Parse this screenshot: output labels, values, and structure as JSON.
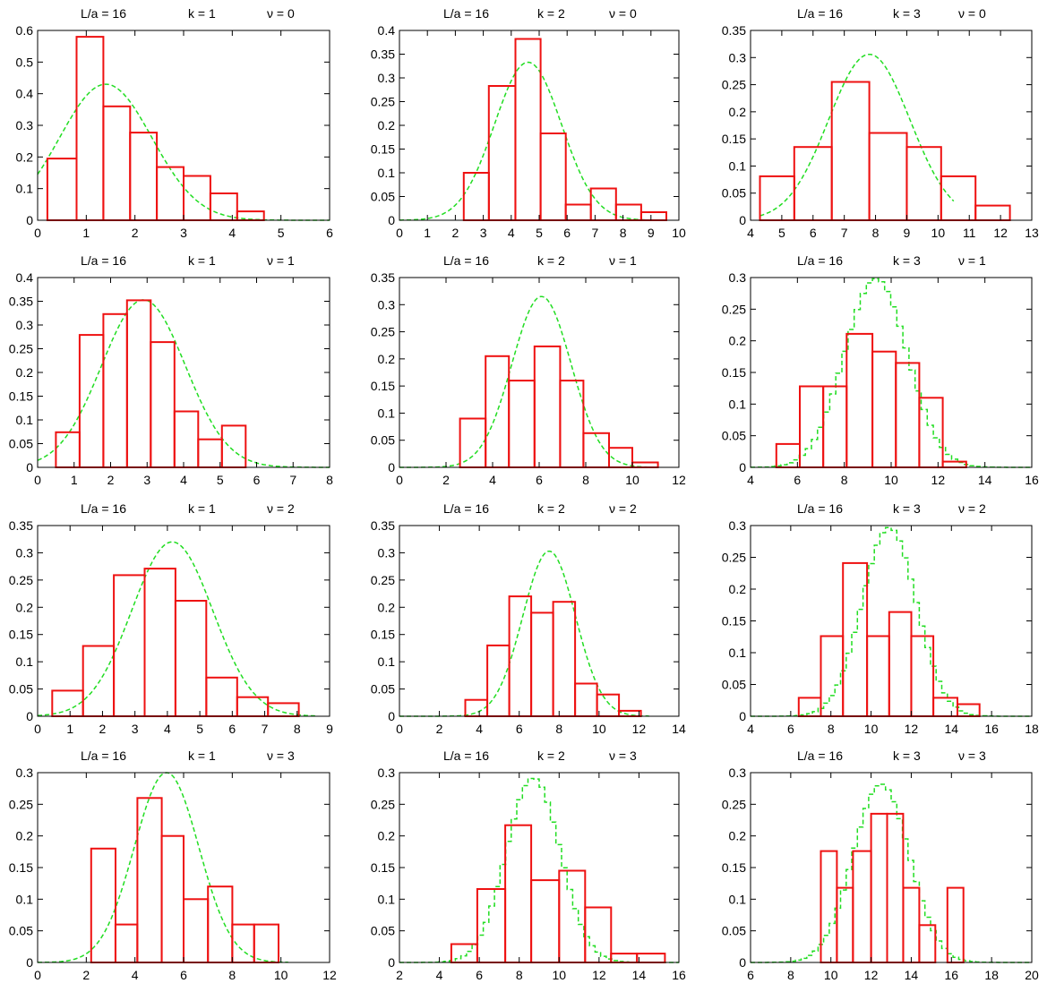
{
  "chart_data": [
    {
      "type": "bar",
      "title": {
        "L": "L/a = 16",
        "k": "k = 1",
        "nu": "ν = 0"
      },
      "xlim": [
        0,
        6
      ],
      "ylim": [
        0,
        0.6
      ],
      "xticks": [
        "0",
        "1",
        "2",
        "3",
        "4",
        "5",
        "6"
      ],
      "yticks": [
        "0",
        "0.1",
        "0.2",
        "0.3",
        "0.4",
        "0.5",
        "0.6"
      ],
      "bins": [
        [
          0.2,
          0.8,
          0.195
        ],
        [
          0.8,
          1.35,
          0.58
        ],
        [
          1.35,
          1.9,
          0.36
        ],
        [
          1.9,
          2.45,
          0.277
        ],
        [
          2.45,
          3.0,
          0.168
        ],
        [
          3.0,
          3.55,
          0.14
        ],
        [
          3.55,
          4.1,
          0.085
        ],
        [
          4.1,
          4.65,
          0.028
        ]
      ],
      "fit": {
        "kind": "smooth",
        "mu": 1.4,
        "sigma": 0.95,
        "peak": 0.43,
        "x": [
          0,
          6
        ]
      }
    },
    {
      "type": "bar",
      "title": {
        "L": "L/a = 16",
        "k": "k = 2",
        "nu": "ν = 0"
      },
      "xlim": [
        0,
        10
      ],
      "ylim": [
        0,
        0.4
      ],
      "xticks": [
        "0",
        "1",
        "2",
        "3",
        "4",
        "5",
        "6",
        "7",
        "8",
        "9",
        "10"
      ],
      "yticks": [
        "0",
        "0.05",
        "0.1",
        "0.15",
        "0.2",
        "0.25",
        "0.3",
        "0.35",
        "0.4"
      ],
      "bins": [
        [
          2.3,
          3.2,
          0.1
        ],
        [
          3.2,
          4.15,
          0.283
        ],
        [
          4.15,
          5.05,
          0.382
        ],
        [
          5.05,
          5.95,
          0.183
        ],
        [
          5.95,
          6.85,
          0.033
        ],
        [
          6.85,
          7.75,
          0.067
        ],
        [
          7.75,
          8.65,
          0.033
        ],
        [
          8.65,
          9.55,
          0.017
        ]
      ],
      "fit": {
        "kind": "smooth",
        "mu": 4.6,
        "sigma": 1.2,
        "peak": 0.333,
        "x": [
          0,
          9.6
        ]
      }
    },
    {
      "type": "bar",
      "title": {
        "L": "L/a = 16",
        "k": "k = 3",
        "nu": "ν = 0"
      },
      "xlim": [
        4,
        13
      ],
      "ylim": [
        0,
        0.35
      ],
      "xticks": [
        "4",
        "5",
        "6",
        "7",
        "8",
        "9",
        "10",
        "11",
        "12",
        "13"
      ],
      "yticks": [
        "0",
        "0.05",
        "0.1",
        "0.15",
        "0.2",
        "0.25",
        "0.3",
        "0.35"
      ],
      "bins": [
        [
          4.3,
          5.4,
          0.081
        ],
        [
          5.4,
          6.6,
          0.135
        ],
        [
          6.6,
          7.8,
          0.255
        ],
        [
          7.8,
          9.0,
          0.161
        ],
        [
          9.0,
          10.1,
          0.135
        ],
        [
          10.1,
          11.2,
          0.081
        ],
        [
          11.2,
          12.3,
          0.027
        ]
      ],
      "fit": {
        "kind": "smooth",
        "mu": 7.8,
        "sigma": 1.3,
        "peak": 0.306,
        "x": [
          4.3,
          10.5
        ]
      }
    },
    {
      "type": "bar",
      "title": {
        "L": "L/a = 16",
        "k": "k = 1",
        "nu": "ν = 1"
      },
      "xlim": [
        0,
        8
      ],
      "ylim": [
        0,
        0.4
      ],
      "xticks": [
        "0",
        "1",
        "2",
        "3",
        "4",
        "5",
        "6",
        "7",
        "8"
      ],
      "yticks": [
        "0",
        "0.05",
        "0.1",
        "0.15",
        "0.2",
        "0.25",
        "0.3",
        "0.35",
        "0.4"
      ],
      "bins": [
        [
          0.5,
          1.15,
          0.074
        ],
        [
          1.15,
          1.8,
          0.279
        ],
        [
          1.8,
          2.45,
          0.323
        ],
        [
          2.45,
          3.1,
          0.352
        ],
        [
          3.1,
          3.75,
          0.264
        ],
        [
          3.75,
          4.4,
          0.118
        ],
        [
          4.4,
          5.05,
          0.059
        ],
        [
          5.05,
          5.7,
          0.088
        ]
      ],
      "fit": {
        "kind": "smooth",
        "mu": 2.9,
        "sigma": 1.15,
        "peak": 0.353,
        "x": [
          0,
          8
        ]
      }
    },
    {
      "type": "bar",
      "title": {
        "L": "L/a = 16",
        "k": "k = 2",
        "nu": "ν = 1"
      },
      "xlim": [
        0,
        12
      ],
      "ylim": [
        0,
        0.35
      ],
      "xticks": [
        "0",
        "2",
        "4",
        "6",
        "8",
        "10",
        "12"
      ],
      "yticks": [
        "0",
        "0.05",
        "0.1",
        "0.15",
        "0.2",
        "0.25",
        "0.3",
        "0.35"
      ],
      "bins": [
        [
          2.6,
          3.7,
          0.09
        ],
        [
          3.7,
          4.7,
          0.205
        ],
        [
          4.7,
          5.8,
          0.16
        ],
        [
          5.8,
          6.9,
          0.223
        ],
        [
          6.9,
          7.9,
          0.16
        ],
        [
          7.9,
          9.0,
          0.063
        ],
        [
          9.0,
          10.0,
          0.036
        ],
        [
          10.0,
          11.1,
          0.009
        ]
      ],
      "fit": {
        "kind": "smooth",
        "mu": 6.1,
        "sigma": 1.27,
        "peak": 0.315,
        "x": [
          0,
          11
        ]
      }
    },
    {
      "type": "bar",
      "title": {
        "L": "L/a = 16",
        "k": "k = 3",
        "nu": "ν = 1"
      },
      "xlim": [
        4,
        16
      ],
      "ylim": [
        0,
        0.3
      ],
      "xticks": [
        "4",
        "6",
        "8",
        "10",
        "12",
        "14",
        "16"
      ],
      "yticks": [
        "0",
        "0.05",
        "0.1",
        "0.15",
        "0.2",
        "0.25",
        "0.3"
      ],
      "bins": [
        [
          5.1,
          6.1,
          0.037
        ],
        [
          6.1,
          7.1,
          0.128
        ],
        [
          7.1,
          8.1,
          0.128
        ],
        [
          8.1,
          9.2,
          0.211
        ],
        [
          9.2,
          10.2,
          0.183
        ],
        [
          10.2,
          11.2,
          0.165
        ],
        [
          11.2,
          12.2,
          0.11
        ],
        [
          12.2,
          13.2,
          0.009
        ]
      ],
      "fit": {
        "kind": "step",
        "mu": 9.35,
        "sigma": 1.34,
        "peak": 0.298,
        "step": 0.26,
        "x": [
          4,
          16
        ]
      }
    },
    {
      "type": "bar",
      "title": {
        "L": "L/a = 16",
        "k": "k = 1",
        "nu": "ν = 2"
      },
      "xlim": [
        0,
        9
      ],
      "ylim": [
        0,
        0.35
      ],
      "xticks": [
        "0",
        "1",
        "2",
        "3",
        "4",
        "5",
        "6",
        "7",
        "8",
        "9"
      ],
      "yticks": [
        "0",
        "0.05",
        "0.1",
        "0.15",
        "0.2",
        "0.25",
        "0.3",
        "0.35"
      ],
      "bins": [
        [
          0.45,
          1.4,
          0.047
        ],
        [
          1.4,
          2.35,
          0.129
        ],
        [
          2.35,
          3.3,
          0.259
        ],
        [
          3.3,
          4.25,
          0.271
        ],
        [
          4.25,
          5.2,
          0.212
        ],
        [
          5.2,
          6.15,
          0.071
        ],
        [
          6.15,
          7.1,
          0.035
        ],
        [
          7.1,
          8.05,
          0.024
        ]
      ],
      "fit": {
        "kind": "smooth",
        "mu": 4.15,
        "sigma": 1.25,
        "peak": 0.32,
        "x": [
          0,
          8.6
        ]
      }
    },
    {
      "type": "bar",
      "title": {
        "L": "L/a = 16",
        "k": "k = 2",
        "nu": "ν = 2"
      },
      "xlim": [
        0,
        14
      ],
      "ylim": [
        0,
        0.35
      ],
      "xticks": [
        "0",
        "2",
        "4",
        "6",
        "8",
        "10",
        "12",
        "14"
      ],
      "yticks": [
        "0",
        "0.05",
        "0.1",
        "0.15",
        "0.2",
        "0.25",
        "0.3",
        "0.35"
      ],
      "bins": [
        [
          3.3,
          4.4,
          0.03
        ],
        [
          4.4,
          5.5,
          0.13
        ],
        [
          5.5,
          6.6,
          0.22
        ],
        [
          6.6,
          7.7,
          0.19
        ],
        [
          7.7,
          8.8,
          0.21
        ],
        [
          8.8,
          9.9,
          0.06
        ],
        [
          9.9,
          11.0,
          0.04
        ],
        [
          11.0,
          12.1,
          0.01
        ]
      ],
      "fit": {
        "kind": "smooth",
        "mu": 7.5,
        "sigma": 1.32,
        "peak": 0.303,
        "x": [
          0,
          12.5
        ]
      }
    },
    {
      "type": "bar",
      "title": {
        "L": "L/a = 16",
        "k": "k = 3",
        "nu": "ν = 2"
      },
      "xlim": [
        4,
        18
      ],
      "ylim": [
        0,
        0.3
      ],
      "xticks": [
        "4",
        "6",
        "8",
        "10",
        "12",
        "14",
        "16",
        "18"
      ],
      "yticks": [
        "0",
        "0.05",
        "0.1",
        "0.15",
        "0.2",
        "0.25",
        "0.3"
      ],
      "bins": [
        [
          6.4,
          7.5,
          0.029
        ],
        [
          7.5,
          8.6,
          0.126
        ],
        [
          8.6,
          9.8,
          0.241
        ],
        [
          9.8,
          10.9,
          0.126
        ],
        [
          10.9,
          12.0,
          0.164
        ],
        [
          12.0,
          13.1,
          0.126
        ],
        [
          13.1,
          14.3,
          0.029
        ],
        [
          14.3,
          15.4,
          0.019
        ]
      ],
      "fit": {
        "kind": "step",
        "mu": 10.9,
        "sigma": 1.35,
        "peak": 0.297,
        "step": 0.28,
        "x": [
          4,
          18
        ]
      }
    },
    {
      "type": "bar",
      "title": {
        "L": "L/a = 16",
        "k": "k = 1",
        "nu": "ν = 3"
      },
      "xlim": [
        0,
        12
      ],
      "ylim": [
        0,
        0.3
      ],
      "xticks": [
        "0",
        "2",
        "4",
        "6",
        "8",
        "10",
        "12"
      ],
      "yticks": [
        "0",
        "0.05",
        "0.1",
        "0.15",
        "0.2",
        "0.25",
        "0.3"
      ],
      "bins": [
        [
          2.2,
          3.2,
          0.18
        ],
        [
          3.2,
          4.1,
          0.06
        ],
        [
          4.1,
          5.1,
          0.26
        ],
        [
          5.1,
          6.0,
          0.2
        ],
        [
          6.0,
          7.0,
          0.1
        ],
        [
          7.0,
          8.0,
          0.12
        ],
        [
          8.0,
          8.9,
          0.06
        ],
        [
          8.9,
          9.9,
          0.06
        ]
      ],
      "fit": {
        "kind": "smooth",
        "mu": 5.3,
        "sigma": 1.33,
        "peak": 0.3,
        "x": [
          0,
          10.3
        ]
      }
    },
    {
      "type": "bar",
      "title": {
        "L": "L/a = 16",
        "k": "k = 2",
        "nu": "ν = 3"
      },
      "xlim": [
        2,
        16
      ],
      "ylim": [
        0,
        0.3
      ],
      "xticks": [
        "2",
        "4",
        "6",
        "8",
        "10",
        "12",
        "14",
        "16"
      ],
      "yticks": [
        "0",
        "0.05",
        "0.1",
        "0.15",
        "0.2",
        "0.25",
        "0.3"
      ],
      "bins": [
        [
          4.6,
          5.9,
          0.029
        ],
        [
          5.9,
          7.3,
          0.116
        ],
        [
          7.3,
          8.6,
          0.217
        ],
        [
          8.6,
          10.0,
          0.13
        ],
        [
          10.0,
          11.3,
          0.145
        ],
        [
          11.3,
          12.6,
          0.087
        ],
        [
          12.6,
          13.9,
          0.014
        ],
        [
          13.9,
          15.3,
          0.014
        ]
      ],
      "fit": {
        "kind": "step",
        "mu": 8.7,
        "sigma": 1.35,
        "peak": 0.292,
        "step": 0.28,
        "x": [
          2,
          16
        ]
      }
    },
    {
      "type": "bar",
      "title": {
        "L": "L/a = 16",
        "k": "k = 3",
        "nu": "ν = 3"
      },
      "xlim": [
        6,
        20
      ],
      "ylim": [
        0,
        0.3
      ],
      "xticks": [
        "6",
        "8",
        "10",
        "12",
        "14",
        "16",
        "18",
        "20"
      ],
      "yticks": [
        "0",
        "0.05",
        "0.1",
        "0.15",
        "0.2",
        "0.25",
        "0.3"
      ],
      "bins": [
        [
          9.5,
          10.3,
          0.176
        ],
        [
          10.3,
          11.1,
          0.118
        ],
        [
          11.1,
          12.0,
          0.176
        ],
        [
          12.0,
          12.8,
          0.235
        ],
        [
          12.8,
          13.6,
          0.235
        ],
        [
          13.6,
          14.4,
          0.118
        ],
        [
          14.4,
          15.2,
          0.059
        ],
        [
          15.8,
          16.6,
          0.118
        ]
      ],
      "fit": {
        "kind": "step",
        "mu": 12.5,
        "sigma": 1.4,
        "peak": 0.282,
        "step": 0.28,
        "x": [
          6,
          20
        ]
      }
    }
  ]
}
